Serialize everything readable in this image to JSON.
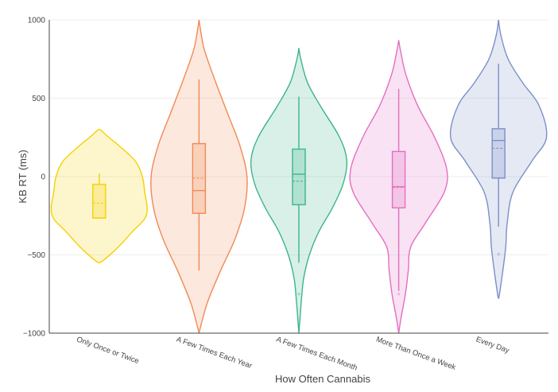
{
  "chart_data": {
    "type": "violin",
    "title": "",
    "xlabel": "How Often Cannabis",
    "ylabel": "KB RT (ms)",
    "ylim": [
      -1000,
      1000
    ],
    "yticks": [
      1000,
      500,
      0,
      -500,
      -1000
    ],
    "ytick_labels": [
      "1000",
      "500",
      "0",
      "−500",
      "−1000"
    ],
    "grid": true,
    "legend": "none",
    "categories": [
      "Only Once or Twice",
      "A Few Times Each Year",
      "A Few Times Each Month",
      "More Than Once a Week",
      "Every Day"
    ],
    "series": [
      {
        "category": "Only Once or Twice",
        "color": "#f5d000",
        "box": {
          "q1": -265,
          "median": -265,
          "q3": -50,
          "mean": -170,
          "whisker_low": -265,
          "whisker_high": 20
        },
        "outliers": [],
        "density_range": [
          -550,
          300
        ],
        "density": [
          [
            300,
            0.02
          ],
          [
            250,
            0.2
          ],
          [
            200,
            0.4
          ],
          [
            100,
            0.75
          ],
          [
            0,
            0.9
          ],
          [
            -100,
            0.95
          ],
          [
            -200,
            1.0
          ],
          [
            -270,
            0.95
          ],
          [
            -350,
            0.7
          ],
          [
            -450,
            0.4
          ],
          [
            -520,
            0.15
          ],
          [
            -550,
            0.02
          ]
        ]
      },
      {
        "category": "A Few Times Each Year",
        "color": "#f08a55",
        "box": {
          "q1": -235,
          "median": -90,
          "q3": 210,
          "mean": -10,
          "whisker_low": -600,
          "whisker_high": 620
        },
        "outliers": [],
        "density_range": [
          -1000,
          1000
        ],
        "density": [
          [
            1000,
            0.0
          ],
          [
            900,
            0.05
          ],
          [
            800,
            0.12
          ],
          [
            600,
            0.35
          ],
          [
            400,
            0.6
          ],
          [
            200,
            0.85
          ],
          [
            0,
            1.0
          ],
          [
            -200,
            0.95
          ],
          [
            -400,
            0.75
          ],
          [
            -600,
            0.45
          ],
          [
            -800,
            0.18
          ],
          [
            -950,
            0.04
          ],
          [
            -1000,
            0.0
          ]
        ]
      },
      {
        "category": "A Few Times Each Month",
        "color": "#3db58a",
        "box": {
          "q1": -180,
          "median": 15,
          "q3": 175,
          "mean": -30,
          "whisker_low": -550,
          "whisker_high": 510
        },
        "outliers": [
          -750
        ],
        "density_range": [
          -1000,
          820
        ],
        "density": [
          [
            820,
            0.0
          ],
          [
            750,
            0.04
          ],
          [
            600,
            0.18
          ],
          [
            450,
            0.45
          ],
          [
            250,
            0.85
          ],
          [
            100,
            1.0
          ],
          [
            -50,
            0.92
          ],
          [
            -200,
            0.7
          ],
          [
            -350,
            0.42
          ],
          [
            -500,
            0.22
          ],
          [
            -650,
            0.1
          ],
          [
            -800,
            0.05
          ],
          [
            -1000,
            0.0
          ]
        ]
      },
      {
        "category": "More Than Once a Week",
        "color": "#e36fc2",
        "box": {
          "q1": -200,
          "median": -65,
          "q3": 160,
          "mean": -70,
          "whisker_low": -730,
          "whisker_high": 560
        },
        "outliers": [
          -750
        ],
        "density_range": [
          -1000,
          870
        ],
        "density": [
          [
            870,
            0.0
          ],
          [
            800,
            0.04
          ],
          [
            650,
            0.15
          ],
          [
            450,
            0.4
          ],
          [
            250,
            0.75
          ],
          [
            50,
            1.0
          ],
          [
            -100,
            0.95
          ],
          [
            -300,
            0.55
          ],
          [
            -450,
            0.25
          ],
          [
            -600,
            0.2
          ],
          [
            -750,
            0.14
          ],
          [
            -900,
            0.05
          ],
          [
            -1000,
            0.0
          ]
        ]
      },
      {
        "category": "Every Day",
        "color": "#7c8fc6",
        "box": {
          "q1": -10,
          "median": 230,
          "q3": 305,
          "mean": 180,
          "whisker_low": -320,
          "whisker_high": 720
        },
        "outliers": [
          -495
        ],
        "density_range": [
          -780,
          1000
        ],
        "density": [
          [
            1000,
            0.0
          ],
          [
            900,
            0.05
          ],
          [
            750,
            0.2
          ],
          [
            600,
            0.5
          ],
          [
            450,
            0.85
          ],
          [
            250,
            1.0
          ],
          [
            100,
            0.7
          ],
          [
            -100,
            0.3
          ],
          [
            -300,
            0.18
          ],
          [
            -450,
            0.15
          ],
          [
            -600,
            0.09
          ],
          [
            -750,
            0.02
          ],
          [
            -780,
            0.0
          ]
        ]
      }
    ]
  }
}
